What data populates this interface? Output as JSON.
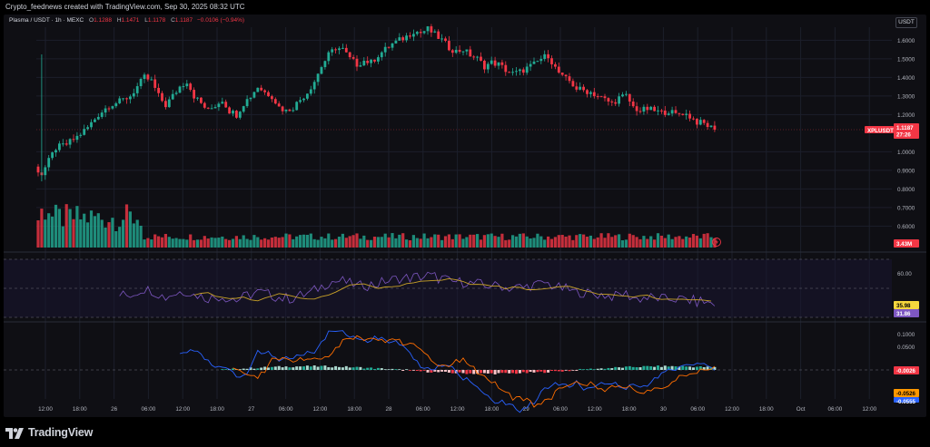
{
  "caption": "Crypto_feednews created with TradingView.com, Sep 30, 2025 08:32 UTC",
  "symbol": {
    "title": "Plasma / USDT · 1h · MEXC",
    "open_label": "O",
    "open": "1.1288",
    "high_label": "H",
    "high": "1.1471",
    "low_label": "L",
    "low": "1.1178",
    "close_label": "C",
    "close": "1.1187",
    "change": "−0.0106 (−0.94%)"
  },
  "currency": "USDT",
  "price_tag": {
    "name": "XPLUSDT",
    "price": "1.1187",
    "countdown": "27:26"
  },
  "volume_tag": "3.43M",
  "rsi_tags": [
    "35.98",
    "31.86"
  ],
  "rsi_tick": "60.00",
  "macd_tags": [
    "-0.0026",
    "-0.0526",
    "-0.0555"
  ],
  "brand": "TradingView",
  "colors": {
    "up": "#22ab94",
    "down": "#f23645",
    "rsi": "#7e57c2",
    "rsi_ma": "#c9a227",
    "macd": "#2962ff",
    "signal": "#ff6d00",
    "tag_yellow": "#f5d63d",
    "tag_purple": "#7e57c2",
    "tag_orange": "#ff9800",
    "tag_blue": "#2962ff"
  },
  "chart_data": {
    "type": "candlestick",
    "symbol": "XPLUSDT",
    "timeframe": "1h",
    "price_axis_ticks": [
      "1.6000",
      "1.5000",
      "1.4000",
      "1.3000",
      "1.2000",
      "1.0000",
      "0.9000",
      "0.8000",
      "0.7000",
      "0.6000"
    ],
    "price_axis_values": [
      1.6,
      1.5,
      1.4,
      1.3,
      1.2,
      1.0,
      0.9,
      0.8,
      0.7,
      0.6
    ],
    "time_axis_labels": [
      "12:00",
      "18:00",
      "26",
      "06:00",
      "12:00",
      "18:00",
      "27",
      "06:00",
      "12:00",
      "18:00",
      "28",
      "06:00",
      "12:00",
      "18:00",
      "29",
      "06:00",
      "12:00",
      "18:00",
      "30",
      "06:00",
      "12:00",
      "18:00",
      "Oct",
      "06:00",
      "12:00"
    ],
    "price_anchors": [
      [
        0,
        0.9
      ],
      [
        1,
        0.88
      ],
      [
        3,
        0.95
      ],
      [
        5,
        1.02
      ],
      [
        8,
        1.04
      ],
      [
        11,
        1.08
      ],
      [
        14,
        1.13
      ],
      [
        17,
        1.2
      ],
      [
        20,
        1.25
      ],
      [
        23,
        1.27
      ],
      [
        26,
        1.3
      ],
      [
        28,
        1.35
      ],
      [
        30,
        1.4
      ],
      [
        32,
        1.38
      ],
      [
        34,
        1.3
      ],
      [
        36,
        1.25
      ],
      [
        38,
        1.3
      ],
      [
        40,
        1.35
      ],
      [
        42,
        1.38
      ],
      [
        44,
        1.3
      ],
      [
        46,
        1.26
      ],
      [
        48,
        1.22
      ],
      [
        50,
        1.25
      ],
      [
        52,
        1.28
      ],
      [
        54,
        1.22
      ],
      [
        56,
        1.2
      ],
      [
        58,
        1.26
      ],
      [
        60,
        1.3
      ],
      [
        62,
        1.35
      ],
      [
        64,
        1.32
      ],
      [
        66,
        1.3
      ],
      [
        68,
        1.24
      ],
      [
        70,
        1.22
      ],
      [
        72,
        1.24
      ],
      [
        74,
        1.28
      ],
      [
        76,
        1.32
      ],
      [
        78,
        1.38
      ],
      [
        80,
        1.46
      ],
      [
        82,
        1.52
      ],
      [
        84,
        1.56
      ],
      [
        86,
        1.55
      ],
      [
        88,
        1.5
      ],
      [
        90,
        1.47
      ],
      [
        92,
        1.49
      ],
      [
        94,
        1.48
      ],
      [
        96,
        1.52
      ],
      [
        98,
        1.55
      ],
      [
        100,
        1.58
      ],
      [
        102,
        1.6
      ],
      [
        104,
        1.62
      ],
      [
        106,
        1.65
      ],
      [
        108,
        1.64
      ],
      [
        110,
        1.66
      ],
      [
        112,
        1.63
      ],
      [
        114,
        1.6
      ],
      [
        116,
        1.56
      ],
      [
        118,
        1.54
      ],
      [
        120,
        1.55
      ],
      [
        122,
        1.52
      ],
      [
        124,
        1.5
      ],
      [
        126,
        1.46
      ],
      [
        128,
        1.48
      ],
      [
        130,
        1.47
      ],
      [
        132,
        1.44
      ],
      [
        134,
        1.42
      ],
      [
        136,
        1.43
      ],
      [
        138,
        1.45
      ],
      [
        140,
        1.47
      ],
      [
        142,
        1.5
      ],
      [
        144,
        1.52
      ],
      [
        146,
        1.45
      ],
      [
        148,
        1.4
      ],
      [
        150,
        1.38
      ],
      [
        152,
        1.34
      ],
      [
        154,
        1.33
      ],
      [
        156,
        1.32
      ],
      [
        158,
        1.3
      ],
      [
        160,
        1.28
      ],
      [
        162,
        1.26
      ],
      [
        164,
        1.29
      ],
      [
        166,
        1.3
      ],
      [
        168,
        1.24
      ],
      [
        170,
        1.22
      ],
      [
        172,
        1.23
      ],
      [
        174,
        1.22
      ],
      [
        176,
        1.21
      ],
      [
        178,
        1.22
      ],
      [
        180,
        1.2
      ],
      [
        182,
        1.21
      ],
      [
        184,
        1.19
      ],
      [
        186,
        1.16
      ],
      [
        188,
        1.15
      ],
      [
        190,
        1.13
      ],
      [
        191,
        1.12
      ]
    ],
    "last_price": 1.1187,
    "volume_last": "3.43M",
    "rsi": {
      "value": 35.98,
      "ma": 31.86,
      "tick": 60.0
    },
    "macd": {
      "histogram_last": -0.0026,
      "macd_last": -0.0526,
      "signal_last": -0.0555
    }
  }
}
